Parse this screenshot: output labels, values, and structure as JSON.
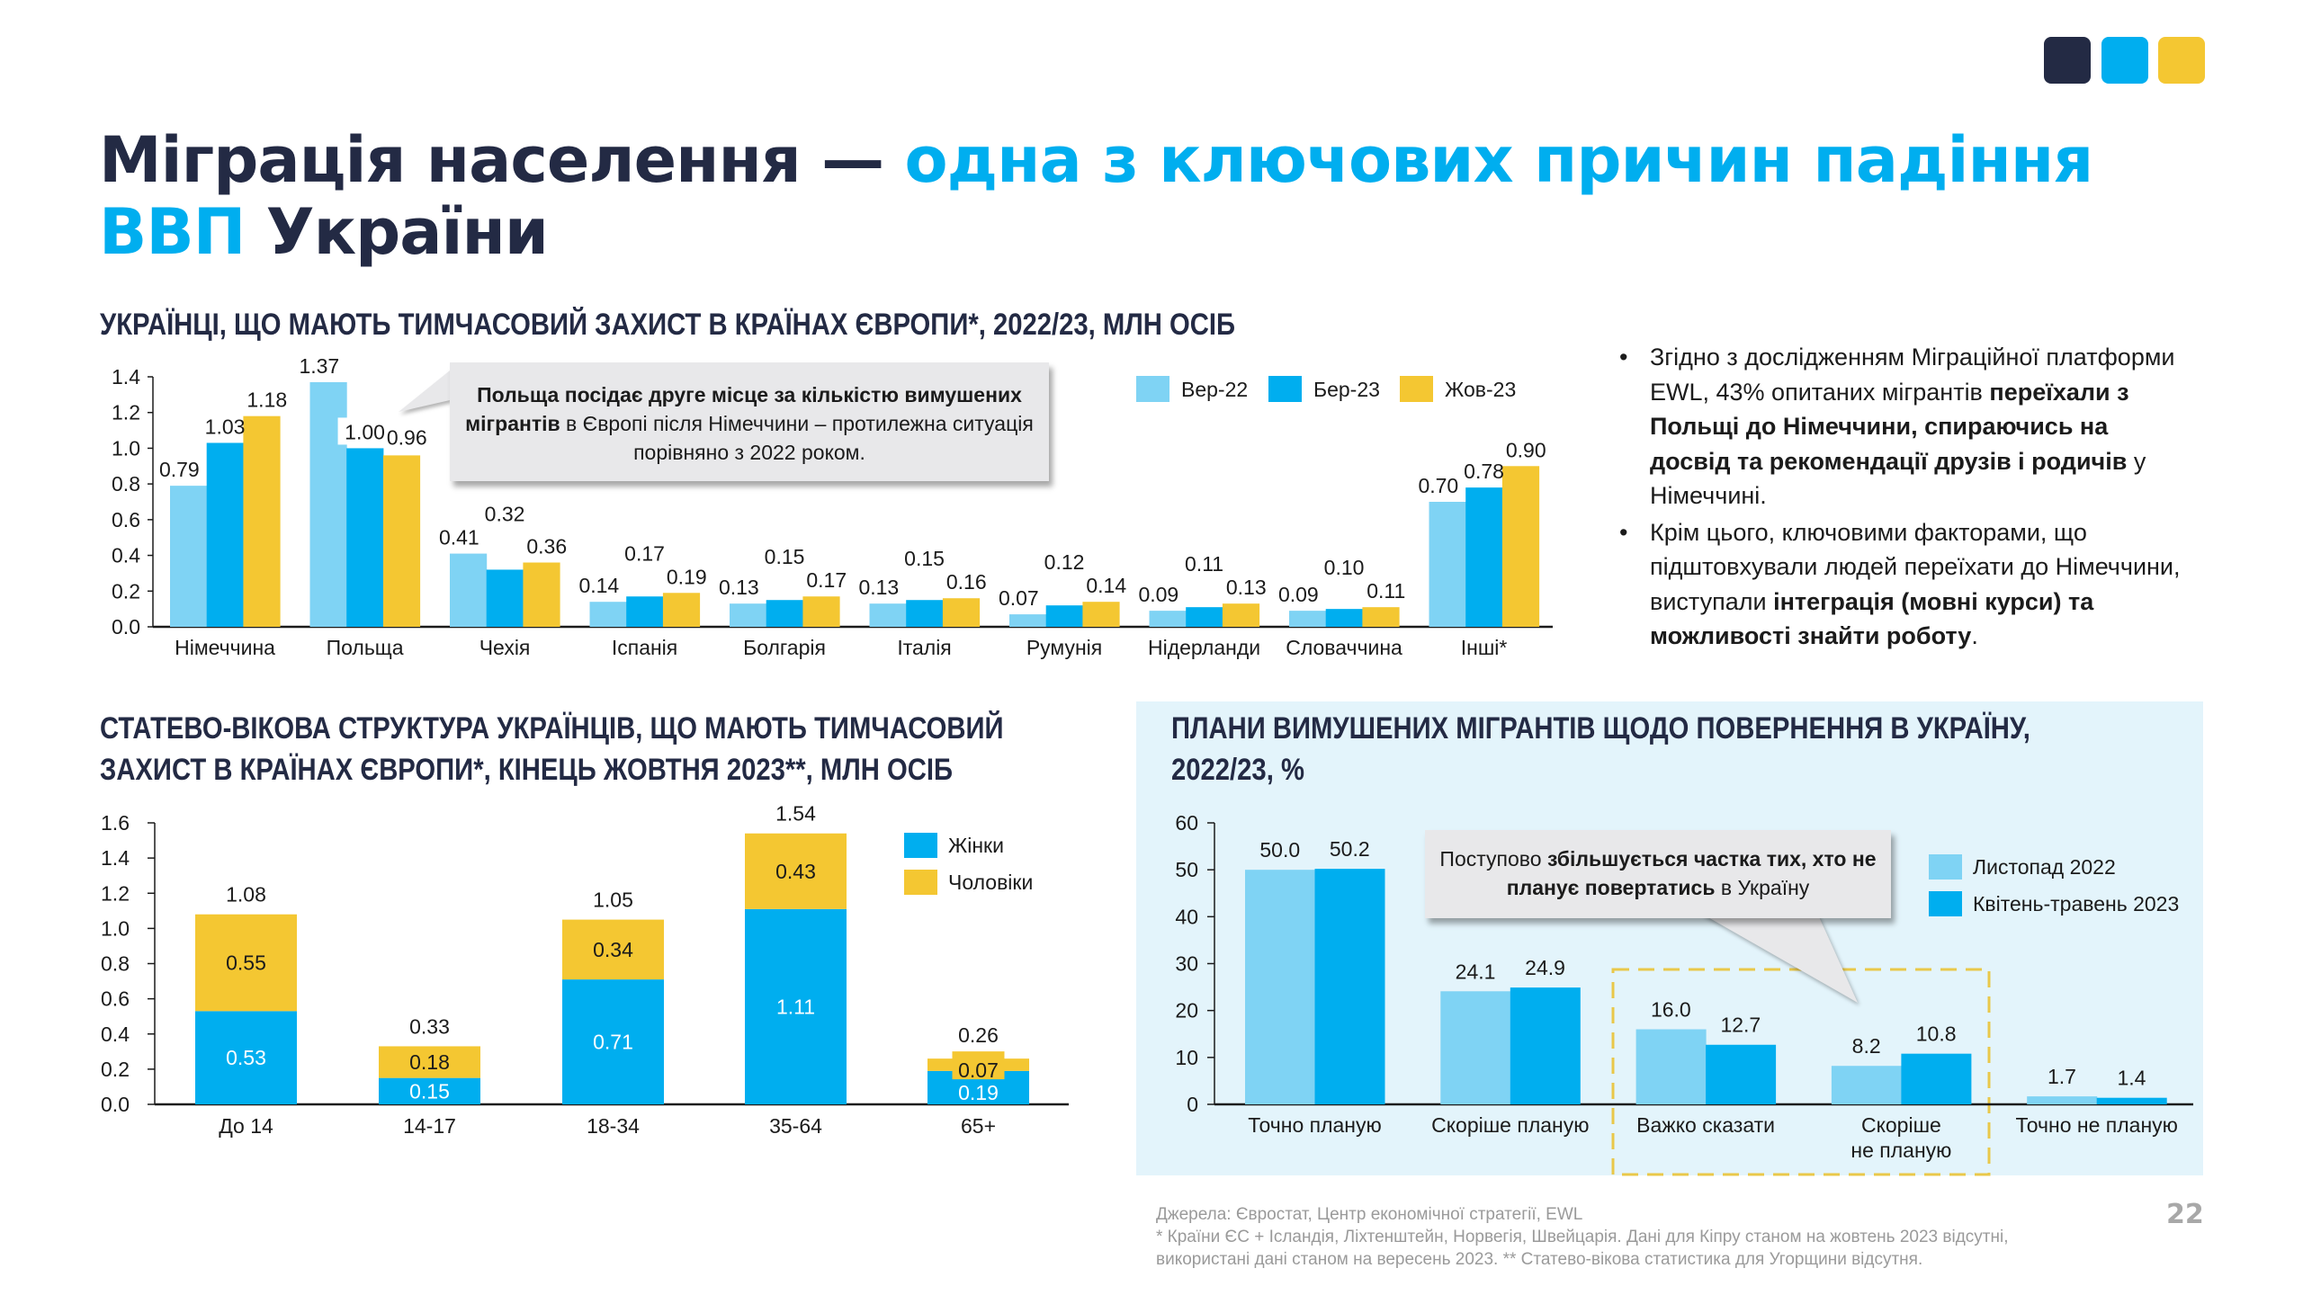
{
  "brand_colors": [
    "#232a44",
    "#00aeef",
    "#f4c732"
  ],
  "title": {
    "part1": "Міграція населення — ",
    "part2": "одна з ключових причин падіння",
    "part3": "ВВП",
    "part4": " України"
  },
  "bullets": [
    {
      "segments": [
        {
          "text": "Згідно з дослідженням Міграційної платформи EWL, 43% опитаних мігрантів ",
          "bold": false
        },
        {
          "text": "переїхали з Польщі до Німеччини, спираючись на досвід та рекомендації друзів і родичів",
          "bold": true
        },
        {
          "text": " у Німеччині.",
          "bold": false
        }
      ]
    },
    {
      "segments": [
        {
          "text": "Крім цього, ключовими факторами, що підштовхували людей переїхати до Німеччини, виступали ",
          "bold": false
        },
        {
          "text": "інтеграція (мовні курси) та можливості знайти роботу",
          "bold": true
        },
        {
          "text": ".",
          "bold": false
        }
      ]
    }
  ],
  "callout1": {
    "bold": "Польща посідає друге місце за кількістю вимушених мігрантів",
    "normal": " в Європі після Німеччини – протилежна ситуація порівняно з 2022 роком."
  },
  "callout2": {
    "normal1": "Поступово ",
    "bold": "збільшується частка тих, хто не планує повертатись",
    "normal2": " в Україну"
  },
  "footer": {
    "sources": "Джерела: Євростат, Центр економічної стратегії, EWL",
    "note": "* Країни ЄС + Ісландія, Ліхтенштейн, Норвегія, Швейцарія. Дані для Кіпру станом на жовтень 2023 відсутні, використані дані станом на вересень 2023. ** Статево-вікова статистика для Угорщини відсутня."
  },
  "page_number": "22",
  "chart_data": [
    {
      "type": "bar",
      "title": "УКРАЇНЦІ, ЩО МАЮТЬ ТИМЧАСОВИЙ ЗАХИСТ В КРАЇНАХ ЄВРОПИ*, 2022/23, МЛН ОСІБ",
      "categories": [
        "Німеччина",
        "Польща",
        "Чехія",
        "Іспанія",
        "Болгарія",
        "Італія",
        "Румунія",
        "Нідерланди",
        "Словаччина",
        "Інші*"
      ],
      "series": [
        {
          "name": "Вер-22",
          "color": "#7fd3f4",
          "values": [
            0.79,
            1.37,
            0.41,
            0.14,
            0.13,
            0.13,
            0.07,
            0.09,
            0.09,
            0.7
          ]
        },
        {
          "name": "Бер-23",
          "color": "#00aeef",
          "values": [
            1.03,
            1.0,
            0.32,
            0.17,
            0.15,
            0.15,
            0.12,
            0.11,
            0.1,
            0.78
          ]
        },
        {
          "name": "Жов-23",
          "color": "#f4c732",
          "values": [
            1.18,
            0.96,
            0.36,
            0.19,
            0.17,
            0.16,
            0.14,
            0.13,
            0.11,
            0.9
          ]
        }
      ],
      "yticks": [
        "0.0",
        "0.2",
        "0.4",
        "0.6",
        "0.8",
        "1.0",
        "1.2",
        "1.4"
      ],
      "ylim": [
        0,
        1.4
      ],
      "legend": "top-right"
    },
    {
      "type": "bar",
      "stacked": true,
      "title": "СТАТЕВО-ВІКОВА СТРУКТУРА УКРАЇНЦІВ, ЩО МАЮТЬ ТИМЧАСОВИЙ ЗАХИСТ В КРАЇНАХ ЄВРОПИ*, КІНЕЦЬ ЖОВТНЯ 2023**, МЛН ОСІБ",
      "categories": [
        "До 14",
        "14-17",
        "18-34",
        "35-64",
        "65+"
      ],
      "series": [
        {
          "name": "Жінки",
          "color": "#00aeef",
          "values": [
            0.53,
            0.15,
            0.71,
            1.11,
            0.19
          ]
        },
        {
          "name": "Чоловіки",
          "color": "#f4c732",
          "values": [
            0.55,
            0.18,
            0.34,
            0.43,
            0.07
          ]
        }
      ],
      "totals": [
        1.08,
        0.33,
        1.05,
        1.54,
        0.26
      ],
      "yticks": [
        "0.0",
        "0.2",
        "0.4",
        "0.6",
        "0.8",
        "1.0",
        "1.2",
        "1.4",
        "1.6"
      ],
      "ylim": [
        0,
        1.6
      ],
      "legend": "top-right"
    },
    {
      "type": "bar",
      "title": "ПЛАНИ ВИМУШЕНИХ МІГРАНТІВ ЩОДО ПОВЕРНЕННЯ В УКРАЇНУ, 2022/23, %",
      "categories": [
        "Точно планую",
        "Скоріше планую",
        "Важко сказати",
        "Скоріше не планую",
        "Точно не планую"
      ],
      "series": [
        {
          "name": "Листопад 2022",
          "color": "#7fd3f4",
          "values": [
            50.0,
            24.1,
            16.0,
            8.2,
            1.7
          ]
        },
        {
          "name": "Квітень-травень 2023",
          "color": "#00aeef",
          "values": [
            50.2,
            24.9,
            12.7,
            10.8,
            1.4
          ]
        }
      ],
      "yticks": [
        "0",
        "10",
        "20",
        "30",
        "40",
        "50",
        "60"
      ],
      "ylim": [
        0,
        60
      ],
      "legend": "top-right",
      "highlight": [
        "Важко сказати",
        "Скоріше не планую"
      ]
    }
  ]
}
